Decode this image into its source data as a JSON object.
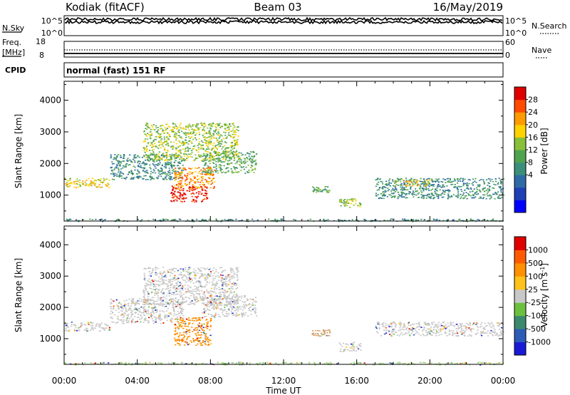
{
  "header": {
    "station": "Kodiak (fitACF)",
    "beam": "Beam 03",
    "date": "16/May/2019"
  },
  "top_panels": {
    "nsky_label": "N.Sky",
    "nsky_ticks": [
      "10^5",
      "10^0"
    ],
    "nsearch_label": "N.Search",
    "nsearch_ticks": [
      "10^5",
      "10^0"
    ],
    "freq_label": "Freq.",
    "freq_unit": "[MHz]",
    "freq_ticks": [
      "18",
      "8"
    ],
    "nave_label": "Nave",
    "nave_ticks": [
      "60",
      "0"
    ],
    "cpid_label": "CPID",
    "cpid_text": "normal (fast) 151 RF"
  },
  "chart_data": [
    {
      "type": "heatmap",
      "name": "power",
      "ylabel": "Slant Range [km]",
      "ytick_labels": [
        "4000",
        "3000",
        "2000",
        "1000"
      ],
      "yticks": [
        4000,
        3000,
        2000,
        1000
      ],
      "ylim": [
        180,
        4600
      ],
      "xlim": [
        0,
        24
      ],
      "colorbar": {
        "label": "Power [dB]",
        "tick_labels": [
          "28",
          "24",
          "20",
          "16",
          "12",
          "8",
          "4"
        ],
        "colors": [
          "#0000ff",
          "#1f3fb5",
          "#2d6aa6",
          "#3b8f7a",
          "#4fa34f",
          "#88c03a",
          "#ffd200",
          "#ff9a00",
          "#ff4a00",
          "#e00000"
        ]
      },
      "features": [
        {
          "t0": 0.0,
          "t1": 24.0,
          "r0": 180,
          "r1": 260,
          "level": 3
        },
        {
          "t0": 0.0,
          "t1": 2.5,
          "r0": 1250,
          "r1": 1550,
          "level": 6
        },
        {
          "t0": 2.5,
          "t1": 6.5,
          "r0": 1500,
          "r1": 2300,
          "level": 3
        },
        {
          "t0": 4.3,
          "t1": 9.5,
          "r0": 2100,
          "r1": 3300,
          "level": 5
        },
        {
          "t0": 6.0,
          "t1": 8.2,
          "r0": 1200,
          "r1": 1900,
          "level": 7
        },
        {
          "t0": 5.8,
          "t1": 7.8,
          "r0": 800,
          "r1": 1300,
          "level": 9
        },
        {
          "t0": 7.5,
          "t1": 10.5,
          "r0": 1700,
          "r1": 2400,
          "level": 4
        },
        {
          "t0": 13.5,
          "t1": 14.5,
          "r0": 1100,
          "r1": 1300,
          "level": 4
        },
        {
          "t0": 15.0,
          "t1": 16.2,
          "r0": 600,
          "r1": 900,
          "level": 5
        },
        {
          "t0": 17.0,
          "t1": 24.0,
          "r0": 900,
          "r1": 1550,
          "level": 3
        },
        {
          "t0": 18.0,
          "t1": 20.0,
          "r0": 1300,
          "r1": 1500,
          "level": 6
        }
      ]
    },
    {
      "type": "heatmap",
      "name": "velocity",
      "ylabel": "Slant Range [km]",
      "ytick_labels": [
        "4000",
        "3000",
        "2000",
        "1000"
      ],
      "yticks": [
        4000,
        3000,
        2000,
        1000
      ],
      "ylim": [
        180,
        4600
      ],
      "xlim": [
        0,
        24
      ],
      "xtick_labels": [
        "00:00",
        "04:00",
        "08:00",
        "12:00",
        "16:00",
        "20:00",
        "00:00"
      ],
      "xticks": [
        0,
        4,
        8,
        12,
        16,
        20,
        24
      ],
      "xlabel": "Time UT",
      "colorbar": {
        "label": "Velocity [m s^-1]",
        "tick_labels": [
          "1000",
          "500",
          "100",
          "25",
          "-25",
          "-100",
          "-500",
          "-1000"
        ],
        "colors": [
          "#1a1ad6",
          "#2d5bb8",
          "#3b8a6e",
          "#6cc040",
          "#c8c8c8",
          "#ffc21a",
          "#ff9000",
          "#ff5a00",
          "#e00000"
        ]
      },
      "features": [
        {
          "t0": 0.0,
          "t1": 24.0,
          "r0": 180,
          "r1": 260,
          "color": "#9ed67a"
        },
        {
          "t0": 0.0,
          "t1": 2.5,
          "r0": 1250,
          "r1": 1550,
          "color": "#c8c8c8"
        },
        {
          "t0": 2.5,
          "t1": 6.5,
          "r0": 1500,
          "r1": 2300,
          "color": "#c8c8c8"
        },
        {
          "t0": 4.3,
          "t1": 9.5,
          "r0": 2100,
          "r1": 3300,
          "color": "#c8c8c8"
        },
        {
          "t0": 6.0,
          "t1": 8.0,
          "r0": 800,
          "r1": 1700,
          "color": "#ff9000"
        },
        {
          "t0": 7.5,
          "t1": 10.5,
          "r0": 1700,
          "r1": 2400,
          "color": "#c8c8c8"
        },
        {
          "t0": 13.5,
          "t1": 14.5,
          "r0": 1100,
          "r1": 1300,
          "color": "#d6a070"
        },
        {
          "t0": 15.0,
          "t1": 16.2,
          "r0": 600,
          "r1": 900,
          "color": "#c8c8c8"
        },
        {
          "t0": 17.0,
          "t1": 24.0,
          "r0": 1100,
          "r1": 1550,
          "color": "#c8c8c8"
        }
      ]
    }
  ]
}
